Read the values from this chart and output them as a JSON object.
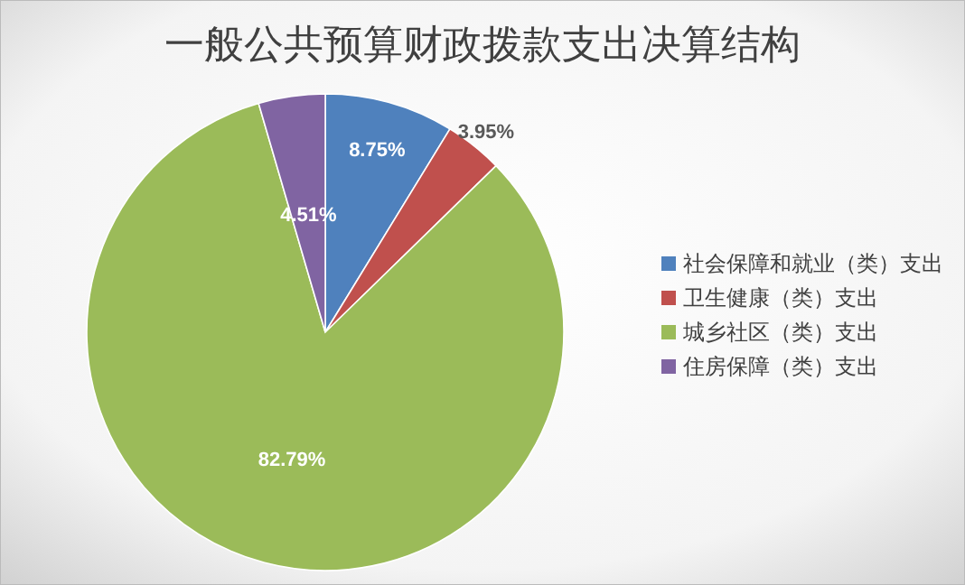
{
  "chart_data": {
    "type": "pie",
    "title": "一般公共预算财政拨款支出决算结构",
    "categories": [
      "社会保障和就业（类）支出",
      "卫生健康（类）支出",
      "城乡社区（类）支出",
      "住房保障（类）支出"
    ],
    "values": [
      8.75,
      3.95,
      82.79,
      4.51
    ],
    "colors": [
      "#4f81bd",
      "#c0504d",
      "#9bbb59",
      "#8064a2"
    ],
    "value_labels": [
      "8.75%",
      "3.95%",
      "82.79%",
      "4.51%"
    ],
    "legend": "right"
  }
}
